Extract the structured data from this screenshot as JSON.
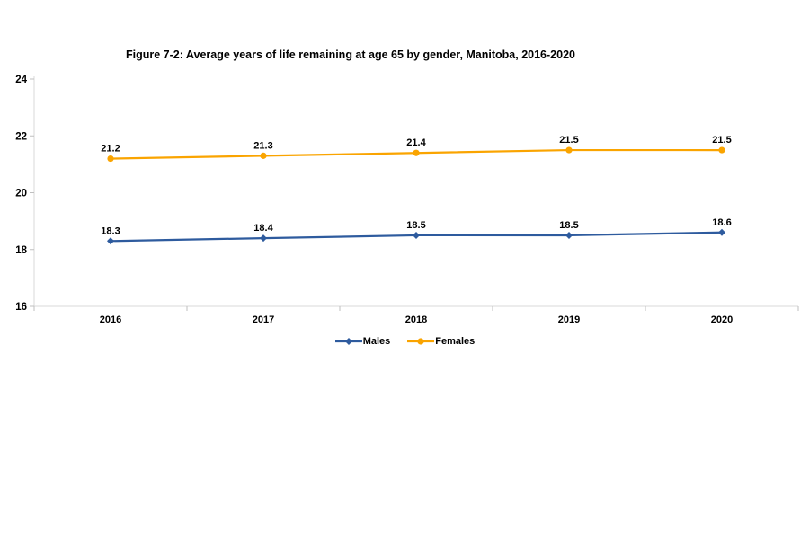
{
  "chart_data": {
    "type": "line",
    "title": "Figure 7-2: Average years of life remaining at age 65 by gender, Manitoba, 2016-2020",
    "categories": [
      "2016",
      "2017",
      "2018",
      "2019",
      "2020"
    ],
    "series": [
      {
        "name": "Males",
        "values": [
          18.3,
          18.4,
          18.5,
          18.5,
          18.6
        ],
        "color": "#2E5B9E",
        "marker": "diamond"
      },
      {
        "name": "Females",
        "values": [
          21.2,
          21.3,
          21.4,
          21.5,
          21.5
        ],
        "color": "#FAA400",
        "marker": "circle"
      }
    ],
    "ylim": [
      16,
      24
    ],
    "yticks": [
      16,
      18,
      20,
      22,
      24
    ],
    "grid": false,
    "data_labels": true,
    "legend_position": "bottom",
    "axis_color": "#D9D9D9",
    "tick_color": "#BFBFBF",
    "label_color": "#000000"
  }
}
